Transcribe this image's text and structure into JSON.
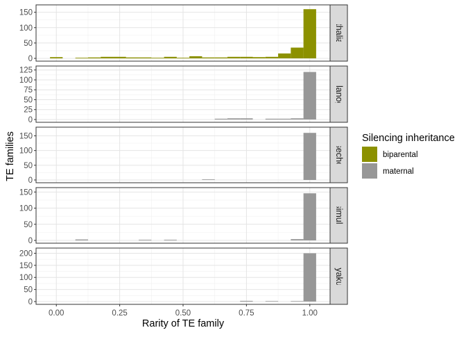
{
  "chart_data": {
    "type": "bar",
    "subtype": "faceted-histogram",
    "xlabel": "Rarity of TE family",
    "ylabel": "TE families",
    "xlim": [
      -0.08,
      1.08
    ],
    "xticks": [
      0.0,
      0.25,
      0.5,
      0.75,
      1.0
    ],
    "xtick_labels": [
      "0.00",
      "0.25",
      "0.50",
      "0.75",
      "1.00"
    ],
    "bin_width": 0.05,
    "bin_centers": [
      0.0,
      0.05,
      0.1,
      0.15,
      0.2,
      0.25,
      0.3,
      0.35,
      0.4,
      0.45,
      0.5,
      0.55,
      0.6,
      0.65,
      0.7,
      0.75,
      0.8,
      0.85,
      0.9,
      0.95,
      1.0
    ],
    "grid": true,
    "legend": {
      "title": "Silencing inheritance",
      "placement": "right",
      "entries": [
        {
          "label": "biparental",
          "color": "#8c9100"
        },
        {
          "label": "maternal",
          "color": "#979797"
        }
      ]
    },
    "facets": [
      {
        "label": "A. thaliana",
        "fill": "biparental",
        "ylim": [
          0,
          165
        ],
        "yticks": [
          0,
          50,
          100,
          150
        ],
        "values": [
          4,
          0,
          2,
          3,
          5,
          5,
          3,
          3,
          2,
          5,
          2,
          7,
          3,
          3,
          5,
          5,
          4,
          5,
          16,
          35,
          160
        ]
      },
      {
        "label": "D. melanogaster",
        "fill": "maternal",
        "ylim": [
          0,
          128
        ],
        "yticks": [
          0,
          25,
          50,
          75,
          100,
          125
        ],
        "values": [
          0,
          0,
          0,
          0,
          0,
          0,
          0,
          0,
          0,
          0,
          0,
          0,
          0,
          2,
          3,
          3,
          0,
          2,
          2,
          3,
          120
        ]
      },
      {
        "label": "D. sechellia",
        "fill": "maternal",
        "ylim": [
          0,
          170
        ],
        "yticks": [
          0,
          50,
          100,
          150
        ],
        "values": [
          0,
          0,
          0,
          0,
          0,
          0,
          0,
          0,
          0,
          0,
          0,
          0,
          2,
          0,
          0,
          0,
          0,
          0,
          0,
          0,
          160
        ]
      },
      {
        "label": "D. simulans",
        "fill": "maternal",
        "ylim": [
          0,
          155
        ],
        "yticks": [
          0,
          50,
          100,
          150
        ],
        "values": [
          0,
          0,
          3,
          0,
          0,
          0,
          0,
          2,
          0,
          2,
          0,
          0,
          0,
          0,
          0,
          0,
          0,
          0,
          0,
          4,
          146
        ]
      },
      {
        "label": "D. yakuba",
        "fill": "maternal",
        "ylim": [
          0,
          210
        ],
        "yticks": [
          0,
          50,
          100,
          150,
          200
        ],
        "values": [
          0,
          0,
          0,
          0,
          0,
          0,
          0,
          0,
          0,
          0,
          0,
          0,
          0,
          0,
          0,
          3,
          0,
          2,
          0,
          2,
          200
        ]
      }
    ]
  }
}
